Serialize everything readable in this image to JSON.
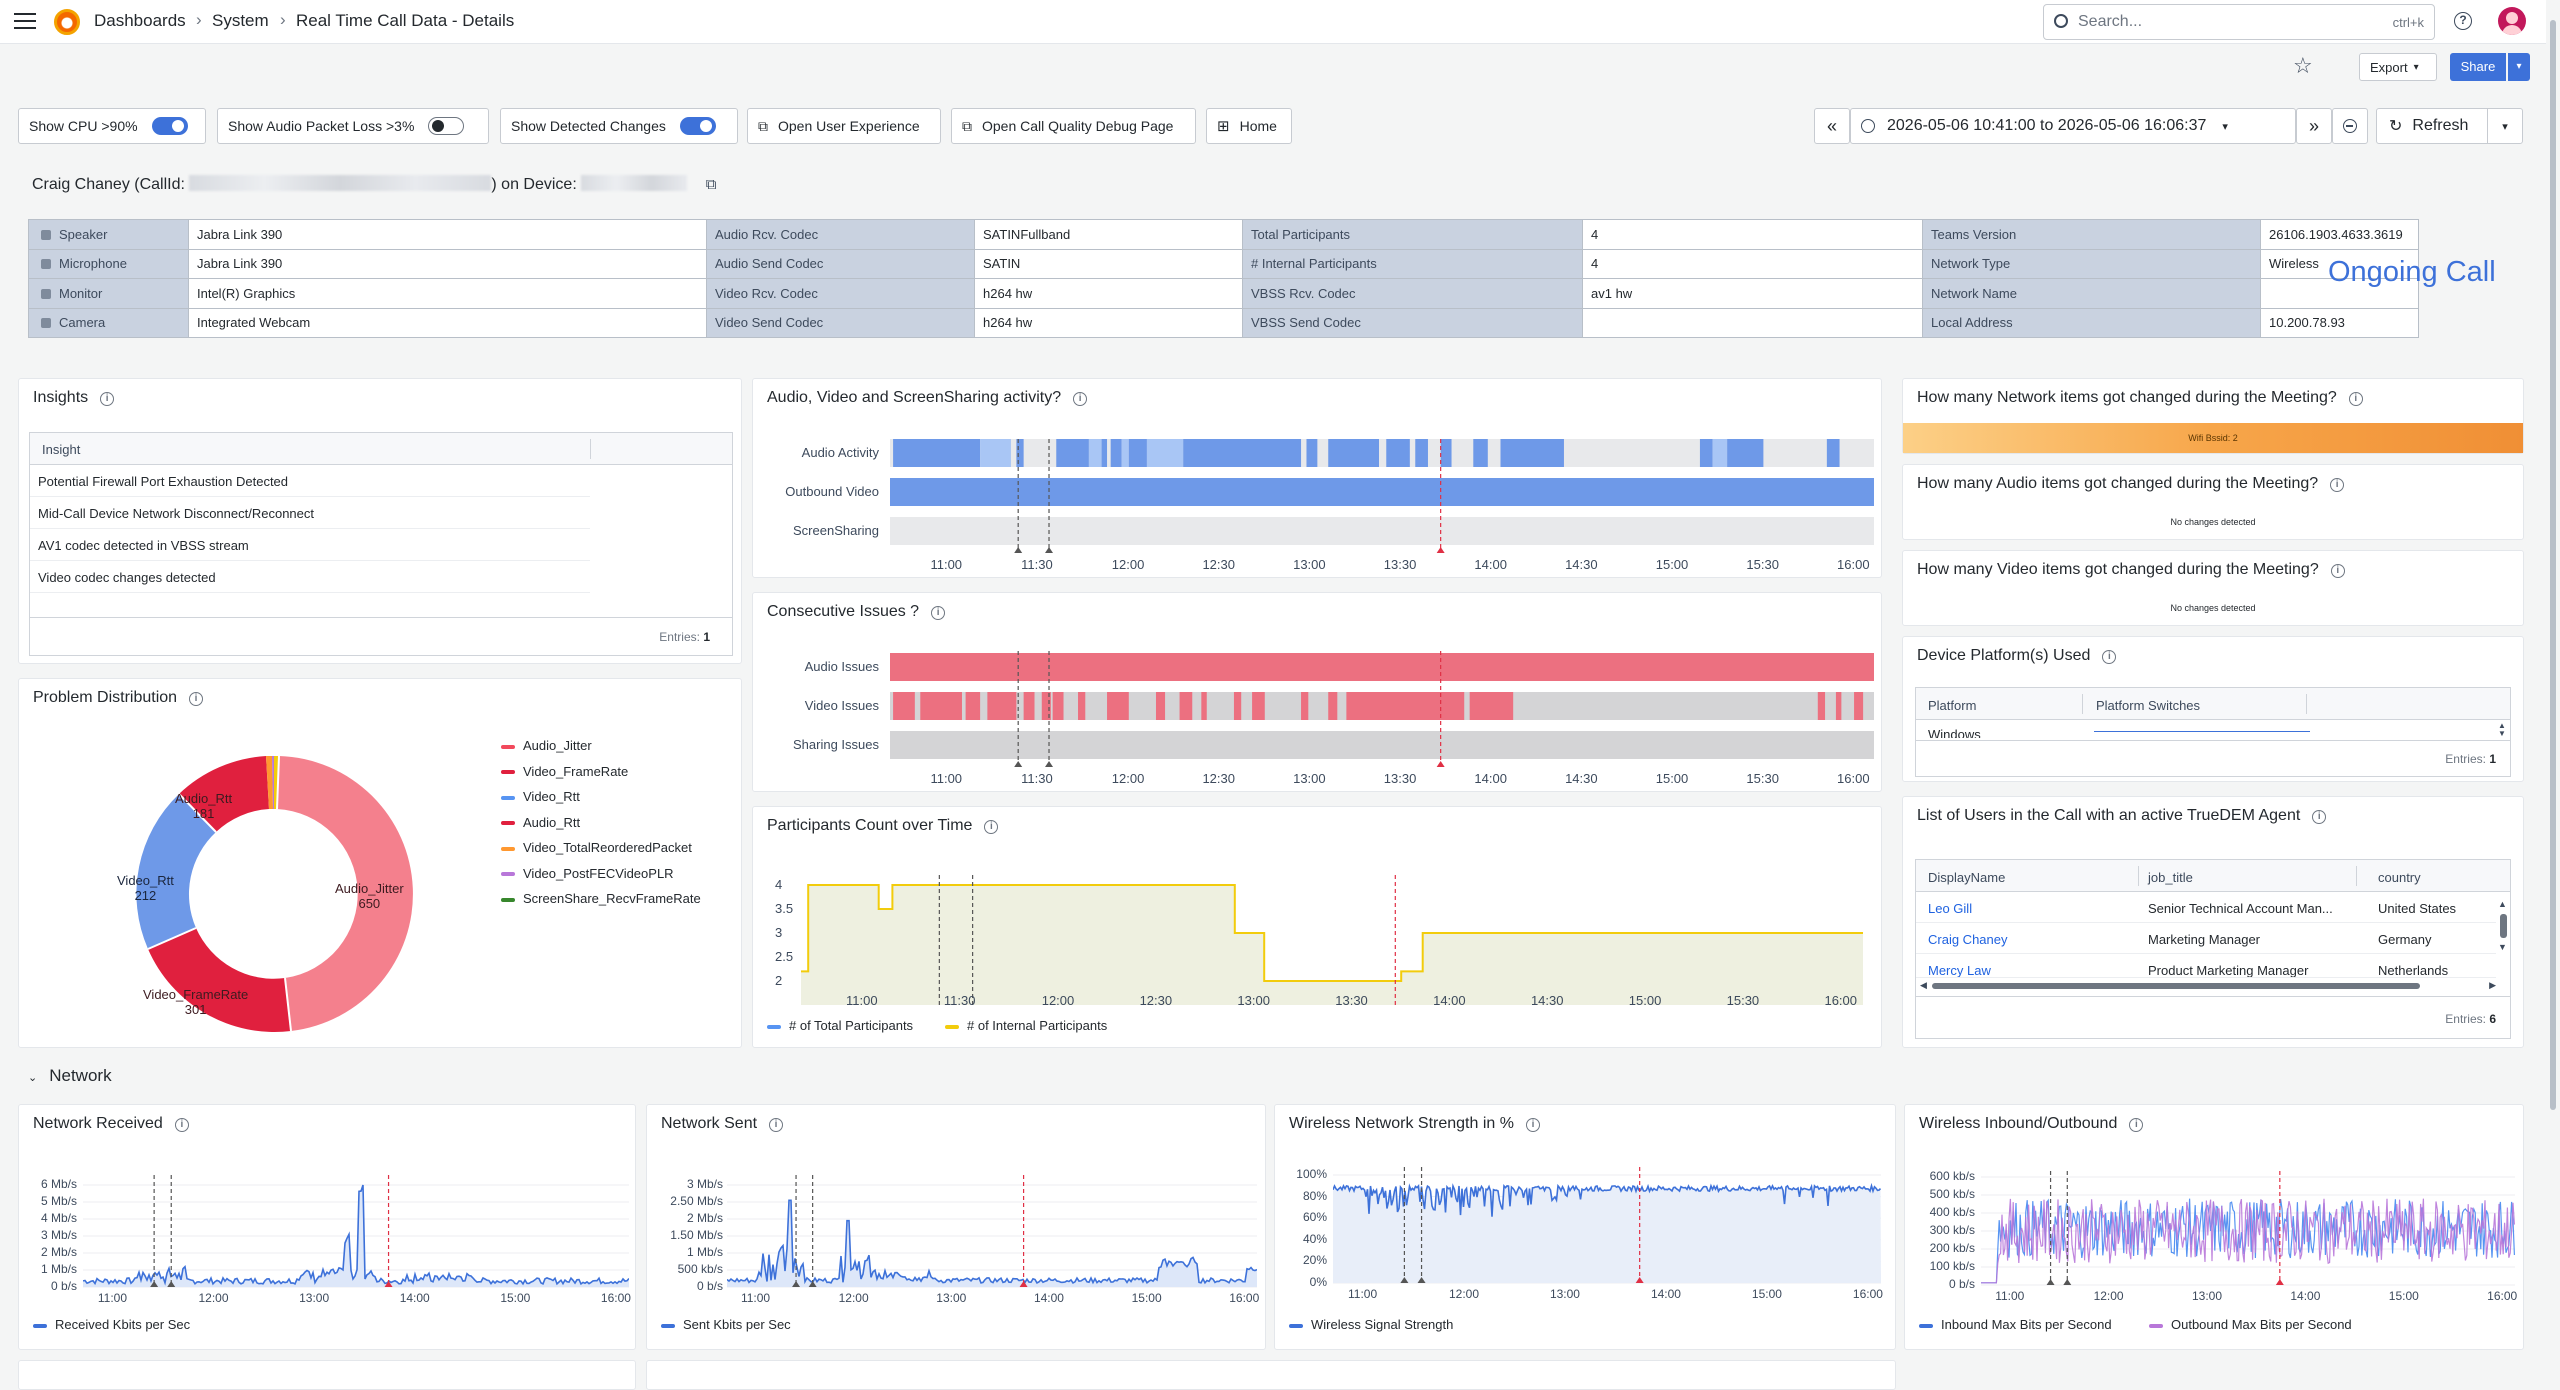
{
  "header": {
    "breadcrumbs": [
      "Dashboards",
      "System",
      "Real Time Call Data - Details"
    ],
    "search_placeholder": "Search...",
    "search_shortcut": "ctrl+k",
    "export_label": "Export",
    "share_label": "Share"
  },
  "toolbar": {
    "toggle_cpu": "Show CPU >90%",
    "toggle_audio_loss": "Show Audio Packet Loss >3%",
    "toggle_changes": "Show Detected Changes",
    "open_user_experience": "Open User Experience",
    "open_debug": "Open Call Quality Debug Page",
    "home": "Home",
    "time_range": "2026-05-06 10:41:00 to 2026-05-06 16:06:37",
    "refresh": "Refresh"
  },
  "call": {
    "title_prefix": "Craig Chaney (CallId:",
    "title_mid": ") on Device:",
    "status": "Ongoing Call"
  },
  "devices": {
    "rows": [
      {
        "icon": "speaker-icon",
        "l1": "Speaker",
        "v1": "Jabra Link 390",
        "l2": "Audio Rcv. Codec",
        "v2": "SATINFullband",
        "l3": "Total Participants",
        "v3": "4",
        "l4": "Teams Version",
        "v4": "26106.1903.4633.3619"
      },
      {
        "icon": "microphone-icon",
        "l1": "Microphone",
        "v1": "Jabra Link 390",
        "l2": "Audio Send Codec",
        "v2": "SATIN",
        "l3": "# Internal Participants",
        "v3": "4",
        "l4": "Network Type",
        "v4": "Wireless"
      },
      {
        "icon": "monitor-icon",
        "l1": "Monitor",
        "v1": "Intel(R) Graphics",
        "l2": "Video Rcv. Codec",
        "v2": "h264 hw",
        "l3": "VBSS Rcv. Codec",
        "v3": "av1 hw",
        "l4": "Network Name",
        "v4": ""
      },
      {
        "icon": "camera-icon",
        "l1": "Camera",
        "v1": "Integrated Webcam",
        "l2": "Video Send Codec",
        "v2": "h264 hw",
        "l3": "VBSS Send Codec",
        "v3": "",
        "l4": "Local Address",
        "v4": "10.200.78.93"
      }
    ]
  },
  "insights": {
    "title": "Insights",
    "header": "Insight",
    "items": [
      "Potential Firewall Port Exhaustion Detected",
      "Mid-Call Device Network Disconnect/Reconnect",
      "AV1 codec detected in VBSS stream",
      "Video codec changes detected"
    ],
    "entries_label": "Entries:",
    "entries": "1"
  },
  "problem_distribution": {
    "title": "Problem Distribution",
    "legend": [
      {
        "name": "Audio_Jitter",
        "color": "#f2495c"
      },
      {
        "name": "Video_FrameRate",
        "color": "#e0203e"
      },
      {
        "name": "Video_Rtt",
        "color": "#5794f2"
      },
      {
        "name": "Audio_Rtt",
        "color": "#e0203e"
      },
      {
        "name": "Video_TotalReorderedPacket",
        "color": "#ff9830"
      },
      {
        "name": "Video_PostFECVideoPLR",
        "color": "#b877d9"
      },
      {
        "name": "ScreenShare_RecvFrameRate",
        "color": "#37872d"
      }
    ]
  },
  "activity": {
    "title": "Audio, Video and ScreenSharing activity?",
    "rows": [
      "Audio Activity",
      "Outbound Video",
      "ScreenSharing"
    ],
    "ticks": [
      "11:00",
      "11:30",
      "12:00",
      "12:30",
      "13:00",
      "13:30",
      "14:00",
      "14:30",
      "15:00",
      "15:30",
      "16:00"
    ]
  },
  "consecutive": {
    "title": "Consecutive Issues ?",
    "rows": [
      "Audio Issues",
      "Video Issues",
      "Sharing Issues"
    ]
  },
  "participants": {
    "title": "Participants Count over Time",
    "yticks": [
      "4",
      "3.5",
      "3",
      "2.5",
      "2"
    ],
    "legend_total": "# of Total Participants",
    "legend_internal": "# of Internal Participants"
  },
  "network_changes": {
    "title": "How many Network items got changed during the Meeting?",
    "bar_text": "Wifi Bssid: 2"
  },
  "audio_changes": {
    "title": "How many Audio items got changed during the Meeting?",
    "text": "No changes detected"
  },
  "video_changes": {
    "title": "How many Video items got changed during the Meeting?",
    "text": "No changes detected"
  },
  "platform": {
    "title": "Device Platform(s) Used",
    "col1": "Platform",
    "col2": "Platform Switches",
    "row": "Windows",
    "entries_label": "Entries:",
    "entries": "1"
  },
  "users": {
    "title": "List of Users in the Call with an active TrueDEM Agent",
    "cols": [
      "DisplayName",
      "job_title",
      "country"
    ],
    "rows": [
      {
        "name": "Leo Gill",
        "job": "Senior Technical Account Man...",
        "country": "United States"
      },
      {
        "name": "Craig Chaney",
        "job": "Marketing Manager",
        "country": "Germany"
      },
      {
        "name": "Mercy Law",
        "job": "Product Marketing Manager",
        "country": "Netherlands"
      }
    ],
    "entries_label": "Entries:",
    "entries": "6"
  },
  "network_section": "Network",
  "net_received": {
    "title": "Network Received",
    "yticks": [
      "6 Mb/s",
      "5 Mb/s",
      "4 Mb/s",
      "3 Mb/s",
      "2 Mb/s",
      "1 Mb/s",
      "0 b/s"
    ],
    "xticks": [
      "11:00",
      "12:00",
      "13:00",
      "14:00",
      "15:00",
      "16:00"
    ],
    "legend": "Received Kbits per Sec"
  },
  "net_sent": {
    "title": "Network Sent",
    "yticks": [
      "3 Mb/s",
      "2.50 Mb/s",
      "2 Mb/s",
      "1.50 Mb/s",
      "1 Mb/s",
      "500 kb/s",
      "0 b/s"
    ],
    "xticks": [
      "11:00",
      "12:00",
      "13:00",
      "14:00",
      "15:00",
      "16:00"
    ],
    "legend": "Sent Kbits per Sec"
  },
  "wireless_strength": {
    "title": "Wireless Network Strength in %",
    "yticks": [
      "100%",
      "80%",
      "60%",
      "40%",
      "20%",
      "0%"
    ],
    "xticks": [
      "11:00",
      "12:00",
      "13:00",
      "14:00",
      "15:00",
      "16:00"
    ],
    "legend": "Wireless Signal Strength"
  },
  "wireless_io": {
    "title": "Wireless Inbound/Outbound",
    "yticks": [
      "600 kb/s",
      "500 kb/s",
      "400 kb/s",
      "300 kb/s",
      "200 kb/s",
      "100 kb/s",
      "0 b/s"
    ],
    "xticks": [
      "11:00",
      "12:00",
      "13:00",
      "14:00",
      "15:00",
      "16:00"
    ],
    "legend_in": "Inbound Max Bits per Second",
    "legend_out": "Outbound Max Bits per Second"
  }
}
